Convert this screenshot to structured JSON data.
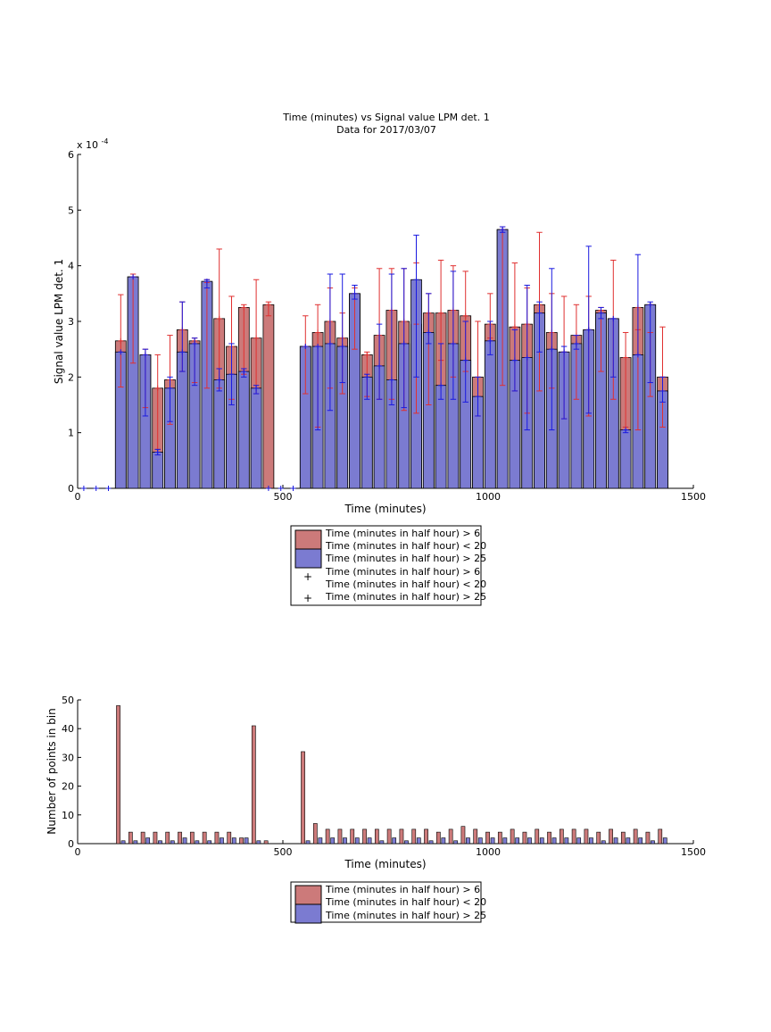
{
  "colors": {
    "red_bar": "#cc7a7a",
    "blue_bar": "#7b7bd1",
    "red_err": "#e03030",
    "blue_err": "#1a1ae0",
    "bar_edge": "#000000"
  },
  "chart_data": [
    {
      "type": "bar",
      "title_line1": "Time (minutes) vs Signal value LPM det. 1",
      "title_line2": "Data for 2017/03/07",
      "xlabel": "Time (minutes)",
      "ylabel": "Signal value LPM det. 1",
      "y_exponent": "x 10",
      "y_exponent_power": "-4",
      "xlim": [
        0,
        1500
      ],
      "ylim": [
        0,
        6
      ],
      "xticks": [
        0,
        500,
        1000,
        1500
      ],
      "yticks": [
        0,
        1,
        2,
        3,
        4,
        5,
        6
      ],
      "legend_placement": "below",
      "legend": [
        "Time (minutes in half hour) > 6",
        "Time (minutes in half hour) < 20",
        "Time (minutes in half hour) > 25",
        "Time (minutes in half hour) > 6",
        "Time (minutes in half hour) < 20",
        "Time (minutes in half hour) > 25"
      ],
      "series": [
        {
          "values": [
            [
              105,
              2.65,
              1.82,
              3.48
            ],
            [
              135,
              3.8,
              2.25,
              3.85
            ],
            [
              165,
              2.4,
              1.45,
              2.5
            ],
            [
              195,
              1.8,
              0.7,
              2.4
            ],
            [
              225,
              1.95,
              1.15,
              2.75
            ],
            [
              255,
              2.85,
              2.1,
              3.35
            ],
            [
              285,
              2.65,
              1.9,
              2.7
            ],
            [
              315,
              3.7,
              1.8,
              3.75
            ],
            [
              345,
              3.05,
              1.8,
              4.3
            ],
            [
              375,
              2.55,
              1.6,
              3.45
            ],
            [
              405,
              3.25,
              2.05,
              3.3
            ],
            [
              435,
              2.7,
              1.7,
              3.75
            ],
            [
              465,
              3.3,
              3.1,
              3.35
            ],
            [
              555,
              2.55,
              1.7,
              3.1
            ],
            [
              585,
              2.8,
              1.1,
              3.3
            ],
            [
              615,
              3.0,
              1.8,
              3.6
            ],
            [
              645,
              2.7,
              1.7,
              3.15
            ],
            [
              675,
              3.5,
              2.5,
              3.6
            ],
            [
              705,
              2.4,
              1.65,
              2.45
            ],
            [
              735,
              2.75,
              1.6,
              3.95
            ],
            [
              765,
              3.2,
              1.6,
              3.95
            ],
            [
              795,
              3.0,
              1.4,
              3.95
            ],
            [
              825,
              2.95,
              1.35,
              4.05
            ],
            [
              855,
              3.15,
              1.5,
              3.5
            ],
            [
              885,
              3.15,
              2.3,
              4.1
            ],
            [
              915,
              3.2,
              2.0,
              4.0
            ],
            [
              945,
              3.1,
              2.1,
              3.9
            ],
            [
              975,
              2.0,
              1.3,
              3.0
            ],
            [
              1005,
              2.95,
              2.7,
              3.5
            ],
            [
              1035,
              4.65,
              1.85,
              4.7
            ],
            [
              1065,
              2.9,
              1.75,
              4.05
            ],
            [
              1095,
              2.95,
              1.35,
              3.6
            ],
            [
              1125,
              3.3,
              1.75,
              4.6
            ],
            [
              1155,
              2.8,
              1.8,
              3.5
            ],
            [
              1185,
              2.45,
              1.25,
              3.45
            ],
            [
              1215,
              2.75,
              1.6,
              3.3
            ],
            [
              1245,
              2.85,
              1.3,
              3.45
            ],
            [
              1275,
              3.2,
              2.1,
              3.25
            ],
            [
              1305,
              3.05,
              1.6,
              4.1
            ],
            [
              1335,
              2.35,
              1.1,
              2.8
            ],
            [
              1365,
              3.25,
              1.05,
              2.85
            ],
            [
              1395,
              3.3,
              1.65,
              2.8
            ],
            [
              1425,
              2.0,
              1.1,
              2.9
            ]
          ]
        },
        {
          "values": [
            [
              105,
              2.45,
              null,
              null
            ],
            [
              135,
              3.8,
              null,
              null
            ],
            [
              165,
              2.4,
              1.3,
              2.5
            ],
            [
              195,
              0.65,
              0.6,
              0.7
            ],
            [
              225,
              1.8,
              1.2,
              2.0
            ],
            [
              255,
              2.45,
              2.1,
              3.35
            ],
            [
              285,
              2.6,
              1.85,
              2.7
            ],
            [
              315,
              3.72,
              3.6,
              3.75
            ],
            [
              345,
              1.95,
              1.75,
              2.15
            ],
            [
              375,
              2.05,
              1.5,
              2.6
            ],
            [
              405,
              2.1,
              2.0,
              2.15
            ],
            [
              435,
              1.8,
              1.7,
              1.85
            ],
            [
              555,
              2.55,
              null,
              null
            ],
            [
              585,
              2.55,
              1.05,
              2.55
            ],
            [
              615,
              2.6,
              1.4,
              3.85
            ],
            [
              645,
              2.55,
              1.9,
              3.85
            ],
            [
              675,
              3.5,
              3.4,
              3.65
            ],
            [
              705,
              2.0,
              1.6,
              2.05
            ],
            [
              735,
              2.2,
              1.6,
              2.95
            ],
            [
              765,
              1.95,
              1.5,
              3.85
            ],
            [
              795,
              2.6,
              1.45,
              3.95
            ],
            [
              825,
              3.75,
              2.0,
              4.55
            ],
            [
              855,
              2.8,
              2.6,
              3.5
            ],
            [
              885,
              1.85,
              1.6,
              2.6
            ],
            [
              915,
              2.6,
              1.6,
              3.9
            ],
            [
              945,
              2.3,
              1.55,
              3.0
            ],
            [
              975,
              1.65,
              1.3,
              2.0
            ],
            [
              1005,
              2.65,
              2.4,
              3.0
            ],
            [
              1035,
              4.65,
              4.6,
              4.7
            ],
            [
              1065,
              2.3,
              1.75,
              2.85
            ],
            [
              1095,
              2.35,
              1.05,
              3.65
            ],
            [
              1125,
              3.15,
              2.45,
              3.35
            ],
            [
              1155,
              2.5,
              1.05,
              3.95
            ],
            [
              1185,
              2.45,
              1.25,
              2.55
            ],
            [
              1215,
              2.6,
              2.5,
              2.75
            ],
            [
              1245,
              2.85,
              1.35,
              4.35
            ],
            [
              1275,
              3.15,
              3.05,
              3.25
            ],
            [
              1305,
              3.05,
              2.0,
              3.05
            ],
            [
              1335,
              1.05,
              1.0,
              1.05
            ],
            [
              1365,
              2.4,
              2.4,
              4.2
            ],
            [
              1395,
              3.3,
              1.9,
              3.35
            ],
            [
              1425,
              1.75,
              1.55,
              2.0
            ]
          ]
        }
      ],
      "zero_markers_x": [
        15,
        45,
        75,
        465,
        495,
        525
      ]
    },
    {
      "type": "bar",
      "xlabel": "Time (minutes)",
      "ylabel": "Number of points in bin",
      "xlim": [
        0,
        1500
      ],
      "ylim": [
        0,
        50
      ],
      "xticks": [
        0,
        500,
        1000,
        1500
      ],
      "yticks": [
        0,
        10,
        20,
        30,
        40,
        50
      ],
      "legend_placement": "below",
      "legend": [
        "Time (minutes in half hour) > 6",
        "Time (minutes in half hour) < 20",
        "Time (minutes in half hour) > 25"
      ],
      "categories": [
        105,
        135,
        165,
        195,
        225,
        255,
        285,
        315,
        345,
        375,
        405,
        435,
        465,
        495,
        525,
        555,
        585,
        615,
        645,
        675,
        705,
        735,
        765,
        795,
        825,
        855,
        885,
        915,
        945,
        975,
        1005,
        1035,
        1065,
        1095,
        1125,
        1155,
        1185,
        1215,
        1245,
        1275,
        1305,
        1335,
        1365,
        1395,
        1425
      ],
      "series": [
        {
          "values": [
            48,
            4,
            4,
            4,
            4,
            4,
            4,
            4,
            4,
            4,
            2,
            41,
            1,
            0,
            0,
            32,
            7,
            5,
            5,
            5,
            5,
            5,
            5,
            5,
            5,
            5,
            4,
            5,
            6,
            5,
            4,
            4,
            5,
            4,
            5,
            4,
            5,
            5,
            5,
            4,
            5,
            4,
            5,
            4,
            5
          ]
        },
        {
          "values": [
            1,
            1,
            2,
            1,
            1,
            2,
            1,
            1,
            2,
            2,
            2,
            1,
            0,
            0,
            0,
            1,
            2,
            2,
            2,
            2,
            2,
            1,
            2,
            1,
            2,
            1,
            2,
            1,
            2,
            2,
            2,
            2,
            2,
            2,
            2,
            2,
            2,
            2,
            2,
            1,
            2,
            2,
            2,
            1,
            2
          ]
        }
      ]
    }
  ]
}
